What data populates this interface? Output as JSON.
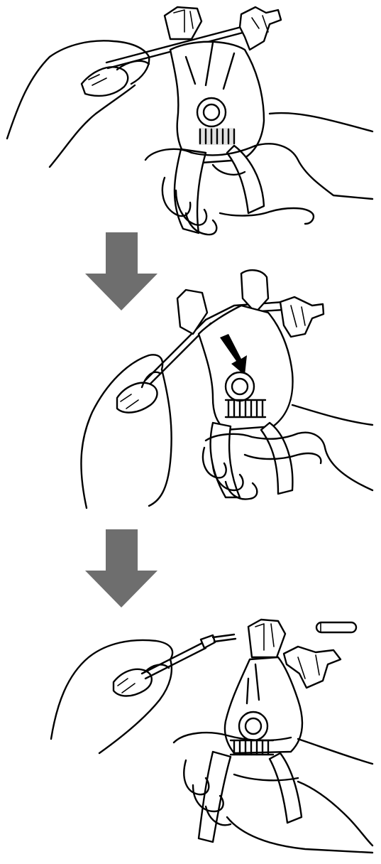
{
  "steps": [
    {
      "id": "step-1",
      "description_visible_text": ""
    },
    {
      "id": "step-2",
      "description_visible_text": ""
    },
    {
      "id": "step-3",
      "description_visible_text": ""
    }
  ],
  "arrows": [
    {
      "id": "arrow-1",
      "direction": "down",
      "color": "#6e6e6e"
    },
    {
      "id": "arrow-2",
      "direction": "down",
      "color": "#6e6e6e"
    }
  ],
  "icons": [
    "wire-stripper-icon",
    "hand-icon",
    "wire-icon",
    "insulation-slug-icon",
    "down-arrow-icon"
  ]
}
